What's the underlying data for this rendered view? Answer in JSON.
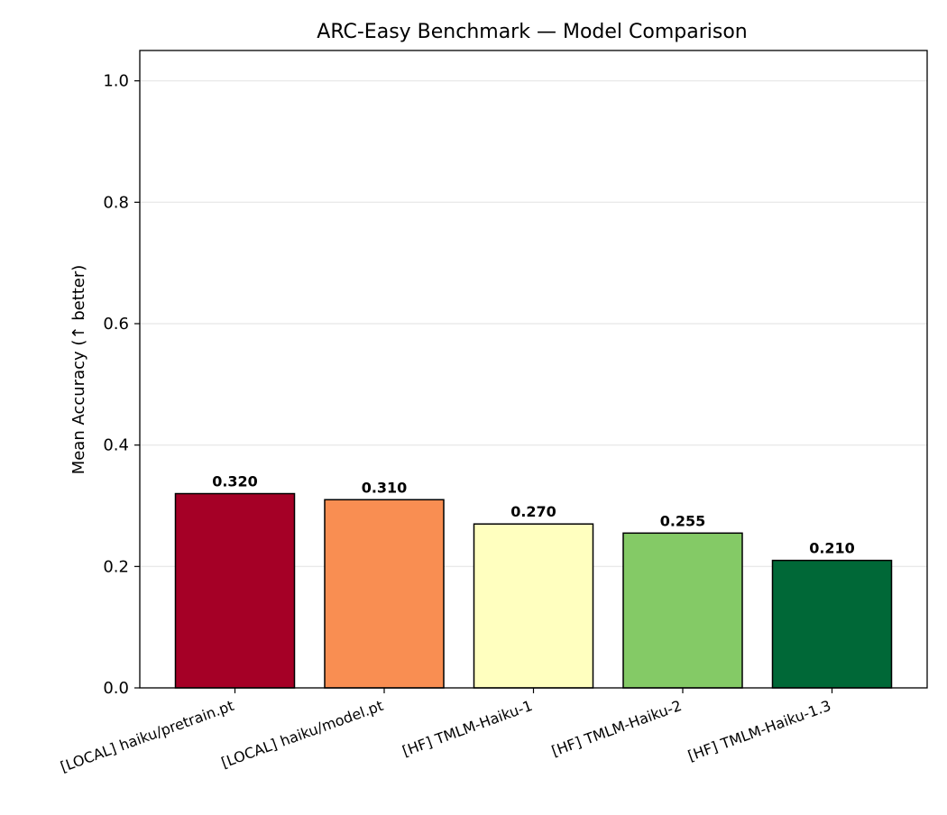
{
  "chart_data": {
    "type": "bar",
    "title": "ARC-Easy Benchmark — Model Comparison",
    "xlabel": "",
    "ylabel": "Mean Accuracy (↑ better)",
    "ylim": [
      0,
      1.05
    ],
    "yticks": [
      "0.0",
      "0.2",
      "0.4",
      "0.6",
      "0.8",
      "1.0"
    ],
    "ytick_values": [
      0,
      0.2,
      0.4,
      0.6,
      0.8,
      1.0
    ],
    "grid": "y-axis, light",
    "categories": [
      "[LOCAL] haiku/pretrain.pt",
      "[LOCAL] haiku/model.pt",
      "[HF] TMLM-Haiku-1",
      "[HF] TMLM-Haiku-2",
      "[HF] TMLM-Haiku-1.3"
    ],
    "values": [
      0.32,
      0.31,
      0.27,
      0.255,
      0.21
    ],
    "value_labels": [
      "0.320",
      "0.310",
      "0.270",
      "0.255",
      "0.210"
    ],
    "colors": [
      "#a50026",
      "#f98e52",
      "#ffffbf",
      "#84ca66",
      "#006837"
    ]
  }
}
